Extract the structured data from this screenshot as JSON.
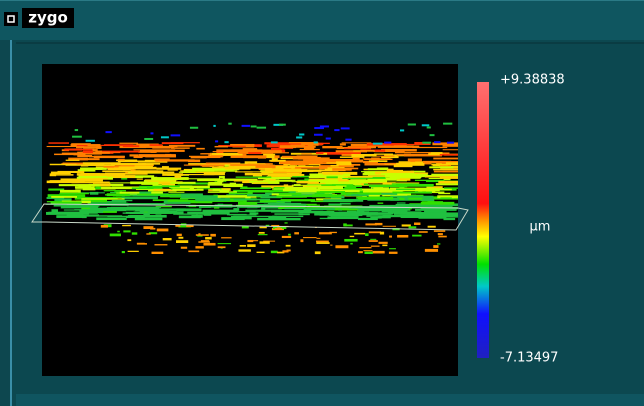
{
  "window": {
    "title": "zygo"
  },
  "colorbar": {
    "max_label": "+9.38838",
    "unit": "µm",
    "min_label": "-7.13497"
  }
}
